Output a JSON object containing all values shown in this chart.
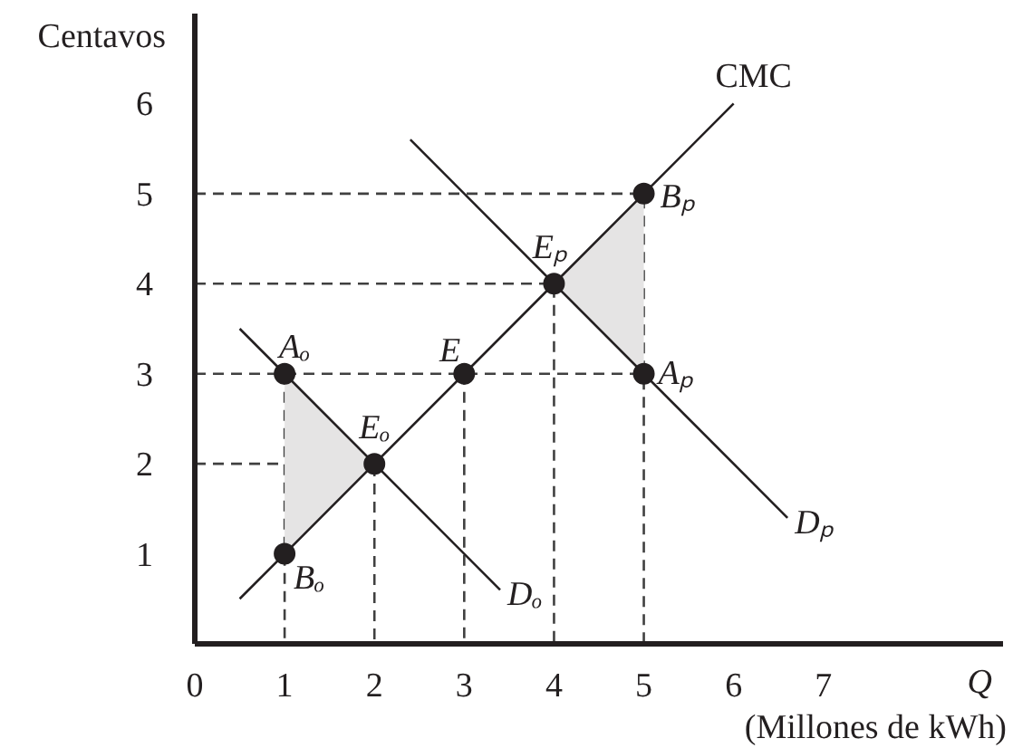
{
  "chart_data": {
    "type": "line",
    "ylabel": "Centavos",
    "xlabel": "Q",
    "xlim": [
      0,
      9
    ],
    "ylim": [
      0,
      7
    ],
    "xticks": [
      0,
      1,
      2,
      3,
      4,
      5,
      6,
      7
    ],
    "yticks": [
      1,
      2,
      3,
      4,
      5,
      6
    ],
    "grid": false,
    "series": [
      {
        "line_style": "dashed",
        "color": "#404040",
        "x": [
          0,
          5,
          5
        ],
        "values": [
          5,
          5,
          0
        ]
      },
      {
        "line_style": "dashed",
        "color": "#404040",
        "x": [
          0,
          4,
          4
        ],
        "values": [
          4,
          4,
          0
        ]
      },
      {
        "line_style": "dashed",
        "color": "#404040",
        "x": [
          0,
          5
        ],
        "values": [
          3,
          3
        ]
      },
      {
        "line_style": "dashed",
        "color": "#404040",
        "x": [
          1,
          1
        ],
        "values": [
          3,
          0
        ]
      },
      {
        "line_style": "dashed",
        "color": "#404040",
        "x": [
          3,
          3
        ],
        "values": [
          3,
          0
        ]
      },
      {
        "line_style": "dashed",
        "color": "#404040",
        "x": [
          0,
          2,
          2
        ],
        "values": [
          2,
          2,
          0
        ]
      },
      {
        "name": "CMC",
        "line_style": "solid",
        "color": "#231f20",
        "x": [
          0.5,
          1,
          2,
          3,
          4,
          5,
          6
        ],
        "values": [
          0.5,
          1,
          2,
          3,
          4,
          5,
          6
        ],
        "lower": [
          null,
          1,
          2,
          null,
          4,
          3,
          null
        ],
        "upper": [
          null,
          3,
          2,
          null,
          4,
          5,
          null
        ]
      },
      {
        "name": "Dₒ",
        "line_style": "solid",
        "color": "#231f20",
        "x": [
          0.5,
          3.4
        ],
        "values": [
          3.5,
          0.6
        ]
      },
      {
        "name": "Dₚ",
        "line_style": "solid",
        "color": "#231f20",
        "x": [
          2.4,
          6.6
        ],
        "values": [
          5.6,
          1.4
        ]
      },
      {
        "type": "scatter",
        "marker": "circle",
        "color": "#231f20",
        "x": [
          1,
          1,
          2,
          3,
          4,
          5,
          5
        ],
        "values": [
          3,
          1,
          2,
          3,
          4,
          5,
          3
        ]
      }
    ],
    "annotations": [
      {
        "text": "Aₒ",
        "x": 1,
        "y": 3
      },
      {
        "text": "Bₒ",
        "x": 1,
        "y": 1
      },
      {
        "text": "Eₒ",
        "x": 2,
        "y": 2
      },
      {
        "text": "E",
        "x": 3,
        "y": 3
      },
      {
        "text": "Eₚ",
        "x": 4,
        "y": 4
      },
      {
        "text": "Bₚ",
        "x": 5,
        "y": 5
      },
      {
        "text": "Aₚ",
        "x": 5,
        "y": 3
      },
      "(Millones de kWh)"
    ]
  }
}
